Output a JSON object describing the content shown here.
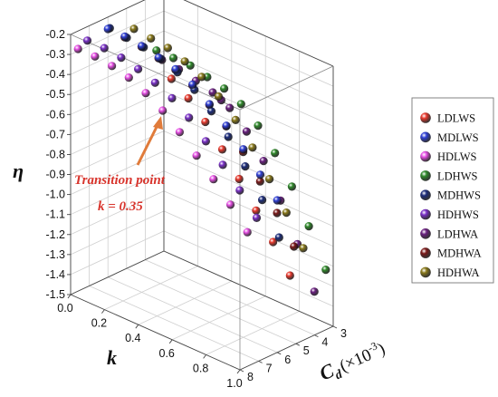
{
  "chart_data": {
    "type": "scatter",
    "chart_kind": "3d-scatter",
    "title": "",
    "axes": {
      "k": {
        "label": "k",
        "ticks": [
          "0.0",
          "0.2",
          "0.4",
          "0.6",
          "0.8",
          "1.0"
        ],
        "range": [
          0.0,
          1.0
        ]
      },
      "cd": {
        "label": "C",
        "label_sub": "d",
        "label_suffix": "(×10",
        "label_sup": "-3",
        "label_close": ")",
        "ticks": [
          "3",
          "4",
          "5",
          "6",
          "7",
          "8"
        ],
        "range": [
          3,
          8
        ]
      },
      "eta": {
        "label": "η",
        "ticks": [
          "-0.2",
          "-0.3",
          "-0.4",
          "-0.5",
          "-0.6",
          "-0.7",
          "-0.8",
          "-0.9",
          "-1.0",
          "-1.1",
          "-1.2",
          "-1.3",
          "-1.4",
          "-1.5"
        ],
        "range": [
          -1.5,
          -0.2
        ]
      }
    },
    "grid": true,
    "legend_placement": "right",
    "annotation": {
      "line1": "Transition point",
      "line2": "k = 0.35",
      "color": "#d8342c"
    },
    "series": [
      {
        "name": "LDLWS",
        "color": "#e8382c",
        "cd": 3.5,
        "points": [
          [
            0.1,
            -0.58
          ],
          [
            0.2,
            -0.64
          ],
          [
            0.3,
            -0.72
          ],
          [
            0.4,
            -0.82
          ],
          [
            0.5,
            -0.93
          ],
          [
            0.6,
            -1.05
          ],
          [
            0.7,
            -1.17
          ],
          [
            0.8,
            -1.3
          ]
        ]
      },
      {
        "name": "MDLWS",
        "color": "#2f3fd6",
        "cd": 6.0,
        "points": [
          [
            0.0,
            -0.26
          ],
          [
            0.1,
            -0.26
          ],
          [
            0.2,
            -0.27
          ],
          [
            0.3,
            -0.29
          ],
          [
            0.4,
            -0.31
          ],
          [
            0.5,
            -0.35
          ],
          [
            0.6,
            -0.41
          ],
          [
            0.7,
            -0.48
          ],
          [
            0.8,
            -0.56
          ],
          [
            0.9,
            -0.65
          ],
          [
            1.0,
            -0.74
          ]
        ]
      },
      {
        "name": "HDLWS",
        "color": "#e84fe6",
        "cd": 7.6,
        "points": [
          [
            0.0,
            -0.29
          ],
          [
            0.1,
            -0.29
          ],
          [
            0.2,
            -0.3
          ],
          [
            0.3,
            -0.32
          ],
          [
            0.4,
            -0.36
          ],
          [
            0.5,
            -0.41
          ],
          [
            0.6,
            -0.48
          ],
          [
            0.7,
            -0.56
          ],
          [
            0.8,
            -0.64
          ],
          [
            0.9,
            -0.73
          ],
          [
            1.0,
            -0.83
          ]
        ]
      },
      {
        "name": "LDHWS",
        "color": "#2f8a2a",
        "cd": 3.4,
        "points": [
          [
            0.0,
            -0.48
          ],
          [
            0.1,
            -0.48
          ],
          [
            0.2,
            -0.48
          ],
          [
            0.3,
            -0.5
          ],
          [
            0.4,
            -0.52
          ],
          [
            0.5,
            -0.56
          ],
          [
            0.6,
            -0.63
          ],
          [
            0.7,
            -0.73
          ],
          [
            0.8,
            -0.86
          ],
          [
            0.9,
            -1.02
          ],
          [
            1.0,
            -1.2
          ]
        ]
      },
      {
        "name": "MDHWS",
        "color": "#1a2a7a",
        "cd": 5.9,
        "points": [
          [
            0.0,
            -0.26
          ],
          [
            0.1,
            -0.27
          ],
          [
            0.2,
            -0.28
          ],
          [
            0.3,
            -0.3
          ],
          [
            0.4,
            -0.33
          ],
          [
            0.5,
            -0.38
          ],
          [
            0.6,
            -0.45
          ],
          [
            0.7,
            -0.54
          ],
          [
            0.8,
            -0.65
          ],
          [
            0.9,
            -0.78
          ],
          [
            1.0,
            -0.93
          ]
        ]
      },
      {
        "name": "HDHWS",
        "color": "#7a2fc8",
        "cd": 7.1,
        "points": [
          [
            0.0,
            -0.27
          ],
          [
            0.1,
            -0.27
          ],
          [
            0.2,
            -0.28
          ],
          [
            0.3,
            -0.3
          ],
          [
            0.4,
            -0.33
          ],
          [
            0.5,
            -0.37
          ],
          [
            0.6,
            -0.43
          ],
          [
            0.7,
            -0.51
          ],
          [
            0.8,
            -0.59
          ],
          [
            0.9,
            -0.68
          ],
          [
            1.0,
            -0.78
          ]
        ]
      },
      {
        "name": "LDHWA",
        "color": "#6a1f80",
        "cd": 3.1,
        "points": [
          [
            0.0,
            -0.54
          ],
          [
            0.1,
            -0.55
          ],
          [
            0.2,
            -0.57
          ],
          [
            0.3,
            -0.59
          ],
          [
            0.35,
            -0.61
          ],
          [
            0.4,
            -0.63
          ],
          [
            0.5,
            -0.71
          ],
          [
            0.6,
            -0.82
          ],
          [
            0.7,
            -0.98
          ],
          [
            0.8,
            -1.16
          ],
          [
            0.9,
            -1.36
          ]
        ]
      },
      {
        "name": "MDHWA",
        "color": "#7a1818",
        "cd": 5.1,
        "points": [
          [
            0.0,
            -0.34
          ],
          [
            0.1,
            -0.35
          ],
          [
            0.2,
            -0.37
          ],
          [
            0.3,
            -0.39
          ],
          [
            0.4,
            -0.43
          ],
          [
            0.5,
            -0.49
          ],
          [
            0.6,
            -0.56
          ],
          [
            0.7,
            -0.65
          ],
          [
            0.8,
            -0.76
          ],
          [
            0.9,
            -0.88
          ],
          [
            1.0,
            -1.01
          ]
        ]
      },
      {
        "name": "HDHWA",
        "color": "#8a7a1a",
        "cd": 4.6,
        "points": [
          [
            0.0,
            -0.32
          ],
          [
            0.1,
            -0.33
          ],
          [
            0.2,
            -0.34
          ],
          [
            0.3,
            -0.37
          ],
          [
            0.4,
            -0.41
          ],
          [
            0.5,
            -0.47
          ],
          [
            0.6,
            -0.55
          ],
          [
            0.7,
            -0.65
          ],
          [
            0.8,
            -0.77
          ],
          [
            0.9,
            -0.9
          ],
          [
            1.0,
            -1.04
          ]
        ]
      }
    ]
  }
}
